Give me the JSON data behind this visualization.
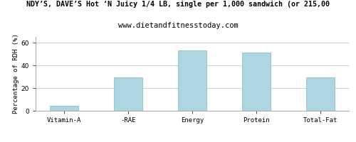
{
  "title_line1": "NDY’S, DAVE’S Hot ‘N Juicy 1/4 LB, single per 1,000 sandwich (or 215,00",
  "title_line2": "www.dietandfitnesstoday.com",
  "categories": [
    "Vitamin-A",
    "-RAE",
    "Energy",
    "Protein",
    "Total-Fat"
  ],
  "values": [
    4.5,
    29.5,
    53.0,
    51.5,
    29.5
  ],
  "bar_color": "#aed6e0",
  "bar_edgecolor": "#7ab8cc",
  "ylabel": "Percentage of RDH (%)",
  "ylim": [
    0,
    65
  ],
  "yticks": [
    0,
    20,
    40,
    60
  ],
  "background_color": "#ffffff",
  "grid_color": "#c8c8c8",
  "title_fontsize": 7.2,
  "subtitle_fontsize": 7.5,
  "ylabel_fontsize": 6.5,
  "xtick_fontsize": 6.5,
  "ytick_fontsize": 6.5
}
